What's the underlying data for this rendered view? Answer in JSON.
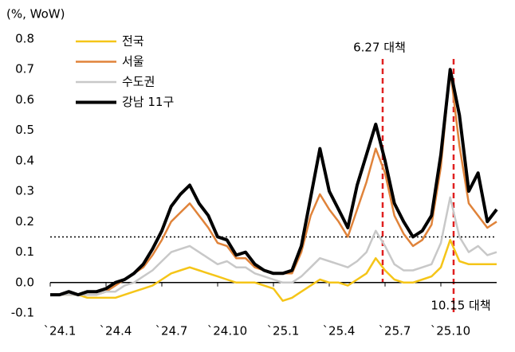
{
  "chart_data": {
    "type": "line",
    "y_label": "(%, WoW)",
    "categories": [
      "`24.1",
      null,
      null,
      null,
      null,
      null,
      "`24.4",
      null,
      null,
      null,
      null,
      null,
      "`24.7",
      null,
      null,
      null,
      null,
      null,
      "`24.10",
      null,
      null,
      null,
      null,
      null,
      "`25.1",
      null,
      null,
      null,
      null,
      null,
      "`25.4",
      null,
      null,
      null,
      null,
      null,
      "`25.7",
      null,
      null,
      null,
      null,
      null,
      "`25.10",
      null,
      null,
      null,
      null,
      null,
      null
    ],
    "series": [
      {
        "name": "전국",
        "color": "#f5c518",
        "values": [
          -0.04,
          -0.04,
          -0.04,
          -0.04,
          -0.05,
          -0.05,
          -0.05,
          -0.05,
          -0.04,
          -0.03,
          -0.02,
          -0.01,
          0.01,
          0.03,
          0.04,
          0.05,
          0.04,
          0.03,
          0.02,
          0.01,
          0.0,
          0.0,
          0.0,
          -0.01,
          -0.02,
          -0.06,
          -0.05,
          -0.03,
          -0.01,
          0.01,
          0.0,
          0.0,
          -0.01,
          0.01,
          0.03,
          0.08,
          0.04,
          0.01,
          0.0,
          0.0,
          0.01,
          0.02,
          0.05,
          0.14,
          0.07,
          0.06,
          0.06,
          0.06,
          0.06
        ]
      },
      {
        "name": "서울",
        "color": "#e0833a",
        "values": [
          -0.04,
          -0.04,
          -0.03,
          -0.04,
          -0.04,
          -0.04,
          -0.03,
          -0.01,
          0.01,
          0.03,
          0.05,
          0.09,
          0.14,
          0.2,
          0.23,
          0.26,
          0.22,
          0.18,
          0.13,
          0.12,
          0.08,
          0.08,
          0.05,
          0.04,
          0.03,
          0.03,
          0.03,
          0.1,
          0.22,
          0.29,
          0.24,
          0.2,
          0.15,
          0.24,
          0.33,
          0.44,
          0.36,
          0.22,
          0.16,
          0.12,
          0.14,
          0.19,
          0.38,
          0.7,
          0.45,
          0.26,
          0.22,
          0.18,
          0.2
        ]
      },
      {
        "name": "수도권",
        "color": "#c8c8c8",
        "values": [
          -0.04,
          -0.04,
          -0.04,
          -0.04,
          -0.04,
          -0.04,
          -0.03,
          -0.03,
          -0.01,
          0.0,
          0.02,
          0.04,
          0.07,
          0.1,
          0.11,
          0.12,
          0.1,
          0.08,
          0.06,
          0.07,
          0.05,
          0.05,
          0.03,
          0.02,
          0.01,
          0.0,
          0.0,
          0.02,
          0.05,
          0.08,
          0.07,
          0.06,
          0.05,
          0.07,
          0.1,
          0.17,
          0.12,
          0.06,
          0.04,
          0.04,
          0.05,
          0.06,
          0.13,
          0.28,
          0.15,
          0.1,
          0.12,
          0.09,
          0.1
        ]
      },
      {
        "name": "강남 11구",
        "color": "#000000",
        "values": [
          -0.04,
          -0.04,
          -0.03,
          -0.04,
          -0.03,
          -0.03,
          -0.02,
          0.0,
          0.01,
          0.03,
          0.06,
          0.11,
          0.17,
          0.25,
          0.29,
          0.32,
          0.26,
          0.22,
          0.15,
          0.14,
          0.09,
          0.1,
          0.06,
          0.04,
          0.03,
          0.03,
          0.04,
          0.12,
          0.28,
          0.44,
          0.3,
          0.24,
          0.18,
          0.32,
          0.42,
          0.52,
          0.4,
          0.26,
          0.2,
          0.15,
          0.17,
          0.22,
          0.42,
          0.7,
          0.55,
          0.3,
          0.36,
          0.2,
          0.24
        ]
      }
    ],
    "ylim": [
      -0.1,
      0.8
    ],
    "yticks": [
      -0.1,
      {
        "value": 0,
        "label": "0.0"
      },
      0.1,
      0.2,
      0.3,
      0.4,
      0.5,
      0.6,
      0.7,
      0.8
    ],
    "reference_line": 0.15,
    "annotations": [
      "6.27 대책",
      "10.15 대책"
    ],
    "legend": "upper-left",
    "grid": false
  }
}
